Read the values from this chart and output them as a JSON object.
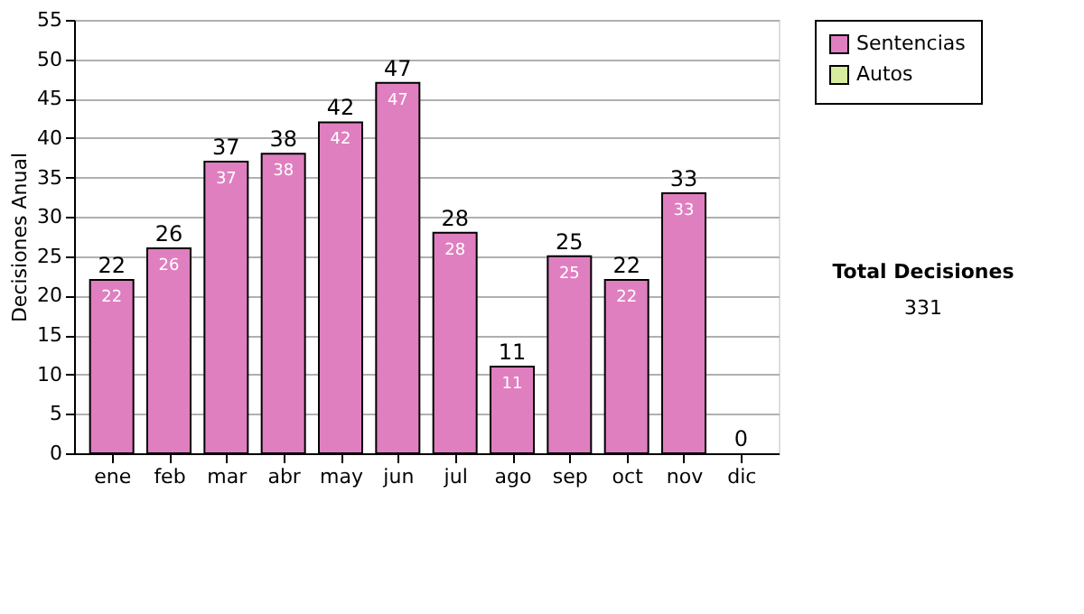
{
  "chart_data": {
    "type": "bar",
    "stacked": true,
    "ylabel": "Decisiones Anual",
    "categories": [
      "ene",
      "feb",
      "mar",
      "abr",
      "may",
      "jun",
      "jul",
      "ago",
      "sep",
      "oct",
      "nov",
      "dic"
    ],
    "series": [
      {
        "name": "Sentencias",
        "color": "#df7fc0",
        "values": [
          22,
          26,
          37,
          38,
          42,
          47,
          28,
          11,
          25,
          22,
          33,
          0
        ],
        "value_labels": [
          "22",
          "26",
          "37",
          "38",
          "42",
          "47",
          "28",
          "11",
          "25",
          "22",
          "33",
          null
        ]
      },
      {
        "name": "Autos",
        "color": "#d8eca0",
        "values": [
          0,
          0,
          0,
          0,
          0,
          0,
          0,
          0,
          0,
          0,
          0,
          0
        ]
      }
    ],
    "totals": [
      "22",
      "26",
      "37",
      "38",
      "42",
      "47",
      "28",
      "11",
      "25",
      "22",
      "33",
      "0"
    ],
    "ylim": [
      0,
      55
    ],
    "yticks": [
      0,
      5,
      10,
      15,
      20,
      25,
      30,
      35,
      40,
      45,
      50,
      55
    ],
    "grid": "y",
    "legend": "right",
    "annotations": [
      "Total Decisiones",
      "331"
    ]
  }
}
